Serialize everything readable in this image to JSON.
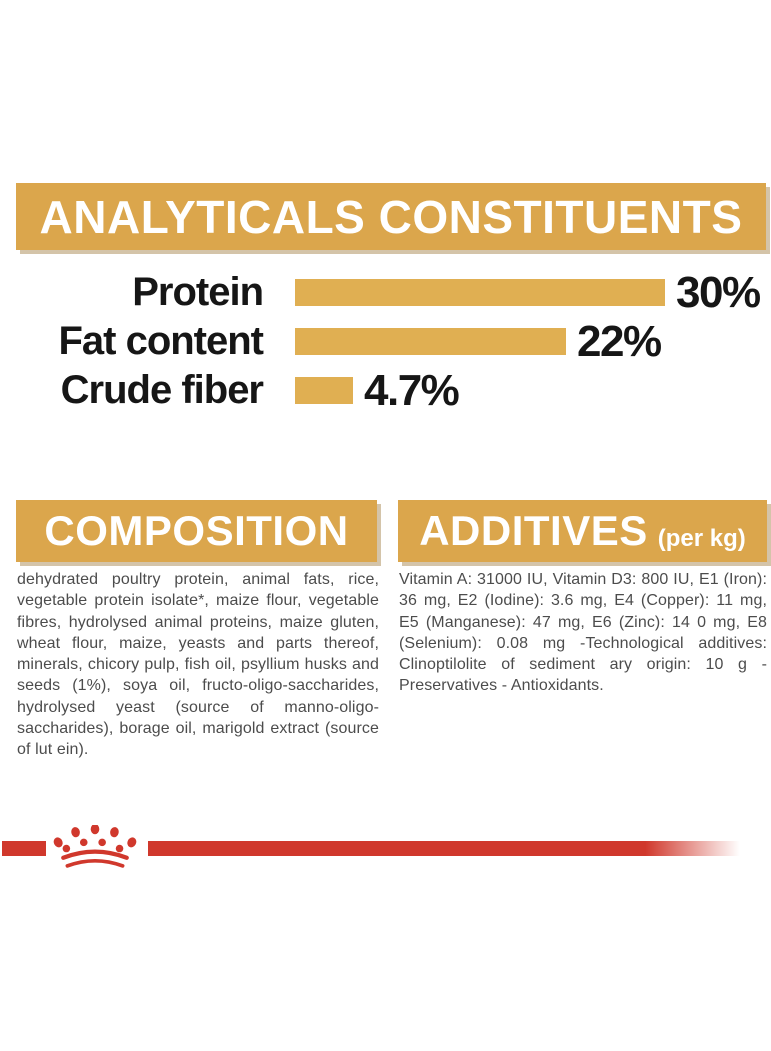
{
  "colors": {
    "gold_header": "#DBA64C",
    "gold_bar": "#E0AF52",
    "brand_red": "#D0382C",
    "heading_text": "#FFFFFF",
    "label_text": "#161616",
    "body_text": "#4C4C4C",
    "background": "#FFFFFF"
  },
  "chart_data": {
    "type": "bar",
    "orientation": "horizontal",
    "title": "ANALYTICALS CONSTITUENTS",
    "categories": [
      "Protein",
      "Fat content",
      "Crude fiber"
    ],
    "values": [
      30,
      22,
      4.7
    ],
    "value_labels": [
      "30%",
      "22%",
      "4.7%"
    ],
    "xlim": [
      0,
      30
    ],
    "grid": "off",
    "legend": "none",
    "bar_color": "#E0AF52"
  },
  "analytical": {
    "title": "ANALYTICALS CONSTITUENTS"
  },
  "composition": {
    "title": "COMPOSITION",
    "body": "dehydrated poultry protein, animal fats, rice, vegetable protein isolate*, maize flour, vegetable fibres, hydrolysed animal proteins, maize gluten, wheat flour, maize, yeasts and parts thereof, minerals, chicory pulp, fish oil, psyllium husks and seeds (1%), soya oil, fructo-oligo-saccharides, hydrolysed yeast (source of manno-oligo-saccharides), borage oil, marigold extract (source of lut ein)."
  },
  "additives": {
    "title": "ADDITIVES",
    "unit": "(per kg)",
    "body": "Vitamin A: 31000 IU, Vitamin D3: 800 IU, E1 (Iron): 36 mg, E2 (Iodine): 3.6 mg, E4 (Copper): 11 mg, E5 (Manganese): 47 mg, E6 (Zinc): 14 0 mg, E8 (Selenium): 0.08 mg -Technological additives: Clinoptilolite of sediment ary origin: 10 g - Preservatives - Antioxidants."
  },
  "footer": {
    "logo": "royal-canin-crown-logo"
  }
}
